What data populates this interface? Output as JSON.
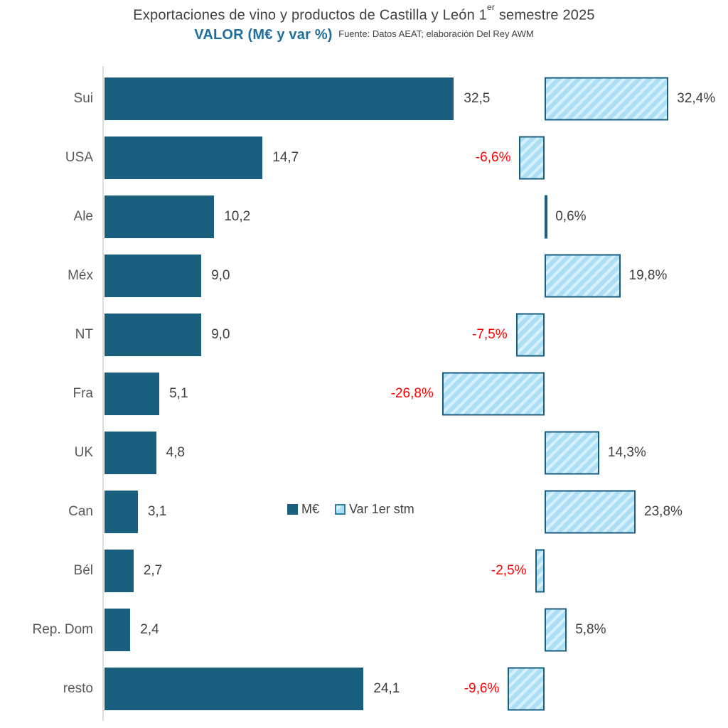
{
  "title": {
    "prefix": "Exportaciones de vino y productos de Castilla y León 1",
    "sup": "er",
    "suffix": " semestre 2025"
  },
  "subtitle": "VALOR (M€ y var %)",
  "source": "Fuente: Datos AEAT; elaboración Del Rey AWM",
  "legend": {
    "series1": "M€",
    "series2": "Var 1er stm"
  },
  "colors": {
    "bar_dark": "#1B5F7F",
    "hatch_base": "#ABDFF6",
    "hatch_stripe": "#D9F0FB",
    "hatch_border": "#1B5F7F",
    "subtitle_blue": "#1F6E9C",
    "negative_red": "#FF0000",
    "value_text": "#3F3F3F",
    "category_text": "#595959",
    "axis_line": "#DCDCDC"
  },
  "chart_data": {
    "type": "bar",
    "orientation": "horizontal",
    "title": "Exportaciones de vino y productos de Castilla y León 1er semestre 2025",
    "subtitle": "VALOR (M€ y var %)",
    "categories": [
      "Sui",
      "USA",
      "Ale",
      "Méx",
      "NT",
      "Fra",
      "UK",
      "Can",
      "Bél",
      "Rep. Dom",
      "resto"
    ],
    "series": [
      {
        "name": "M€",
        "values": [
          32.5,
          14.7,
          10.2,
          9.0,
          9.0,
          5.1,
          4.8,
          3.1,
          2.7,
          2.4,
          24.1
        ],
        "labels": [
          "32,5",
          "14,7",
          "10,2",
          "9,0",
          "9,0",
          "5,1",
          "4,8",
          "3,1",
          "2,7",
          "2,4",
          "24,1"
        ]
      },
      {
        "name": "Var 1er stm",
        "values": [
          32.4,
          -6.6,
          0.6,
          19.8,
          -7.5,
          -26.8,
          14.3,
          23.8,
          -2.5,
          5.8,
          -9.6
        ],
        "labels": [
          "32,4%",
          "-6,6%",
          "0,6%",
          "19,8%",
          "-7,5%",
          "-26,8%",
          "14,3%",
          "23,8%",
          "-2,5%",
          "5,8%",
          "-9,6%"
        ]
      }
    ],
    "value_axis_visible": false,
    "grid": false,
    "legend_position": "center-of-plot",
    "negative_labels_color": "red"
  }
}
